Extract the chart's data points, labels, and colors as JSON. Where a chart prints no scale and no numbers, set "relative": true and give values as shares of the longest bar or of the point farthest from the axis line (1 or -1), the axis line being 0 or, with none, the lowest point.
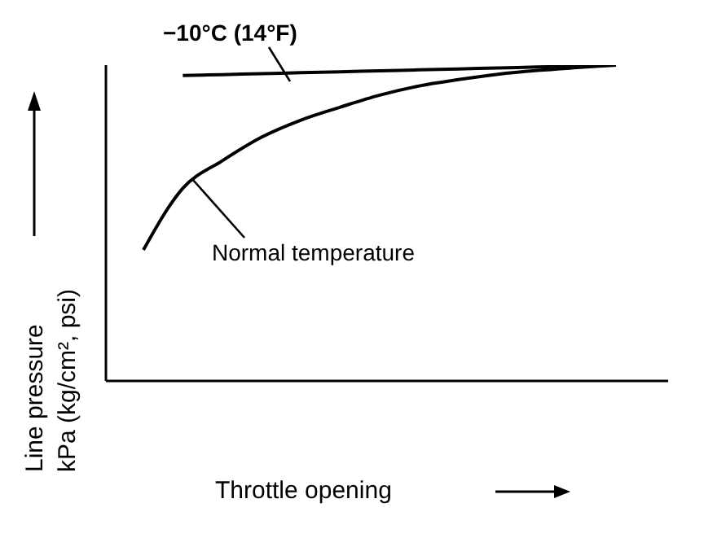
{
  "chart_data": {
    "type": "line",
    "relative": true,
    "xlabel": "Throttle opening",
    "ylabel": "Line pressure\nkPa (kg/cm², psi)",
    "categories": [
      null,
      null,
      null,
      null,
      null,
      null,
      null,
      null,
      null,
      null,
      null,
      null,
      null
    ],
    "marker": "none",
    "grid": false,
    "legend": false,
    "series": [
      {
        "name": "−10°C (14°F)",
        "color": "#000000",
        "values": [
          null,
          0.967,
          0.97,
          0.973,
          0.976,
          0.979,
          0.982,
          0.985,
          0.988,
          0.991,
          0.994,
          0.997,
          1.0
        ]
      },
      {
        "name": "Normal temperature",
        "color": "#000000",
        "values": [
          0.415,
          0.61,
          0.697,
          0.772,
          0.826,
          0.867,
          0.905,
          0.934,
          0.954,
          0.971,
          0.983,
          0.992,
          1.0
        ]
      }
    ]
  }
}
